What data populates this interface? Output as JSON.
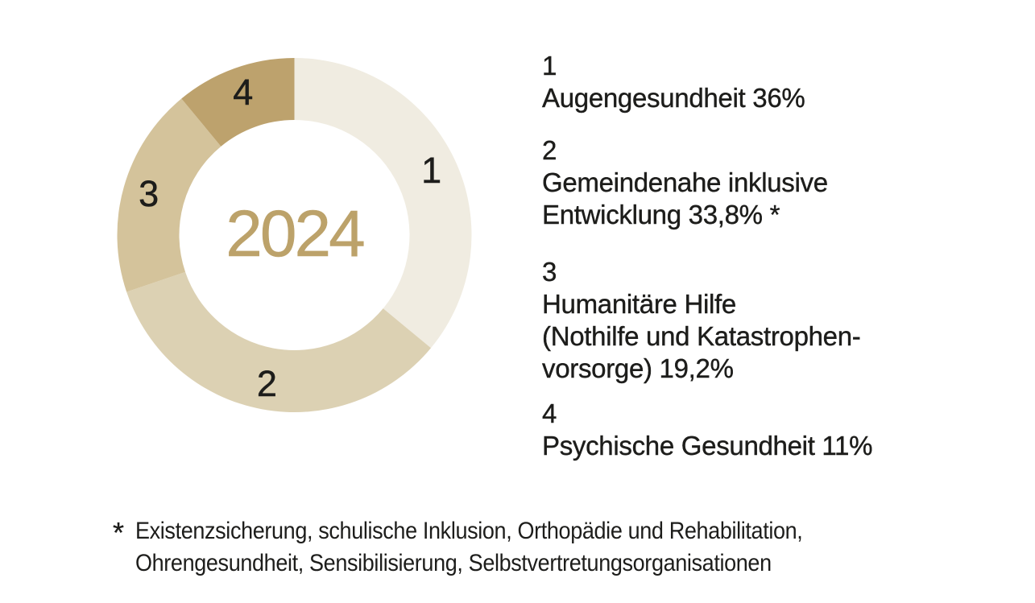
{
  "page": {
    "background": "#FFFFFF"
  },
  "chart_data": {
    "type": "pie",
    "variant": "donut",
    "title": "2024",
    "center_label": "2024",
    "start_angle_deg": 0,
    "direction": "clockwise",
    "inner_radius_ratio": 0.65,
    "legend_position": "right",
    "categories": [
      "Augengesundheit",
      "Gemeindenahe inklusive Entwicklung",
      "Humanitäre Hilfe (Nothilfe und Katastrophenvorsorge)",
      "Psychische Gesundheit"
    ],
    "values": [
      36,
      33.8,
      19.2,
      11
    ],
    "segments": [
      {
        "number": "1",
        "label": "Augengesundheit",
        "value_pct": 36,
        "display_value": "36%",
        "color": "#F0ECE1"
      },
      {
        "number": "2",
        "label": "Gemeindenahe inklusive Entwicklung",
        "value_pct": 33.8,
        "display_value": "33,8% *",
        "color": "#DCD1B3"
      },
      {
        "number": "3",
        "label": "Humanitäre Hilfe (Nothilfe und Katastrophenvorsorge)",
        "value_pct": 19.2,
        "display_value": "19,2%",
        "color": "#D4C39B"
      },
      {
        "number": "4",
        "label": "Psychische Gesundheit",
        "value_pct": 11,
        "display_value": "11%",
        "color": "#BDA26D"
      }
    ]
  },
  "legend": {
    "items": [
      {
        "number": "1",
        "lines": [
          "Augengesundheit 36%"
        ]
      },
      {
        "number": "2",
        "lines": [
          "Gemeindenahe inklusive",
          "Entwicklung 33,8% *"
        ]
      },
      {
        "number": "3",
        "lines": [
          "Humanitäre Hilfe",
          "(Nothilfe und Katastrophen-",
          "vorsorge) 19,2%"
        ]
      },
      {
        "number": "4",
        "lines": [
          "Psychische Gesundheit 11%"
        ]
      }
    ]
  },
  "footnote": {
    "marker": "*",
    "lines": [
      "Existenzsicherung, schulische Inklusion, Orthopädie und Rehabilitation,",
      "Ohrengesundheit, Sensibilisierung, Selbstvertretungsorganisationen"
    ]
  },
  "colors": {
    "background": "#FFFFFF",
    "center_text": "#BCA26A",
    "label_text": "#1D1D1B",
    "segment_1": "#F0ECE1",
    "segment_2": "#DCD1B3",
    "segment_3": "#D4C39B",
    "segment_4": "#BDA26D"
  }
}
